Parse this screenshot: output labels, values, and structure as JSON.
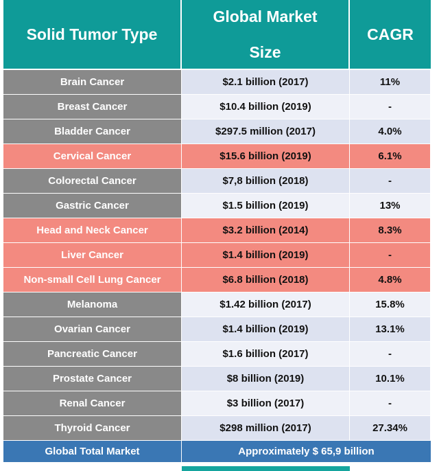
{
  "headers": {
    "tumor_type": "Solid Tumor Type",
    "market_size_line1": "Global Market",
    "market_size_line2": "Size",
    "cagr": "CAGR"
  },
  "rows": [
    {
      "type": "Brain Cancer",
      "size": "$2.1 billion (2017)",
      "cagr": "11%",
      "highlight": false
    },
    {
      "type": "Breast Cancer",
      "size": "$10.4 billion (2019)",
      "cagr": "-",
      "highlight": false
    },
    {
      "type": "Bladder Cancer",
      "size": "$297.5 million (2017)",
      "cagr": "4.0%",
      "highlight": false
    },
    {
      "type": "Cervical Cancer",
      "size": "$15.6 billion (2019)",
      "cagr": "6.1%",
      "highlight": true
    },
    {
      "type": "Colorectal Cancer",
      "size": "$7,8 billion (2018)",
      "cagr": "-",
      "highlight": false
    },
    {
      "type": "Gastric Cancer",
      "size": "$1.5 billion (2019)",
      "cagr": "13%",
      "highlight": false
    },
    {
      "type": "Head and Neck Cancer",
      "size": "$3.2 billion (2014)",
      "cagr": "8.3%",
      "highlight": true
    },
    {
      "type": "Liver Cancer",
      "size": "$1.4 billion (2019)",
      "cagr": "-",
      "highlight": true
    },
    {
      "type": "Non-small Cell Lung Cancer",
      "size": "$6.8 billion (2018)",
      "cagr": "4.8%",
      "highlight": true
    },
    {
      "type": "Melanoma",
      "size": "$1.42 billion (2017)",
      "cagr": "15.8%",
      "highlight": false
    },
    {
      "type": "Ovarian Cancer",
      "size": "$1.4 billion (2019)",
      "cagr": "13.1%",
      "highlight": false
    },
    {
      "type": "Pancreatic Cancer",
      "size": "$1.6 billion (2017)",
      "cagr": "-",
      "highlight": false
    },
    {
      "type": "Prostate Cancer",
      "size": "$8 billion (2019)",
      "cagr": "10.1%",
      "highlight": false
    },
    {
      "type": "Renal Cancer",
      "size": "$3 billion (2017)",
      "cagr": "-",
      "highlight": false
    },
    {
      "type": "Thyroid Cancer",
      "size": "$298 million (2017)",
      "cagr": "27.34%",
      "highlight": false
    }
  ],
  "total": {
    "label": "Global Total Market",
    "value": "Approximately $ 65,9 billion"
  },
  "colors": {
    "header_teal": "#0f9b98",
    "label_gray": "#898989",
    "highlight_salmon": "#f38a80",
    "total_blue": "#3a77b4"
  }
}
